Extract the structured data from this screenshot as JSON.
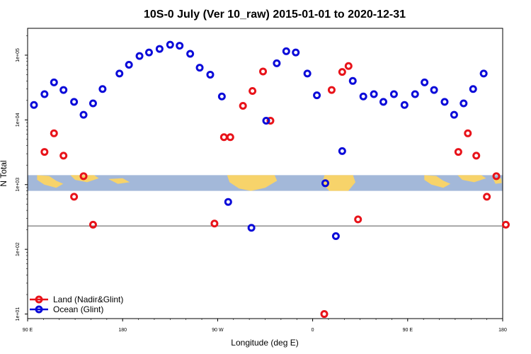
{
  "chart_data": {
    "type": "scatter",
    "title": "10S-0 July (Ver 10_raw)   2015-01-01 to 2020-12-31",
    "xlabel": "Longitude (deg E)",
    "ylabel": "N Total",
    "x_scale": "linear",
    "y_scale": "log",
    "xlim": [
      90,
      540
    ],
    "ylim": [
      8.5,
      260000
    ],
    "x_ticks": [
      {
        "value": 90,
        "label": "90 E"
      },
      {
        "value": 180,
        "label": "180"
      },
      {
        "value": 270,
        "label": "90 W"
      },
      {
        "value": 360,
        "label": "0"
      },
      {
        "value": 450,
        "label": "90 E"
      },
      {
        "value": 540,
        "label": "180"
      }
    ],
    "y_ticks": [
      {
        "value": 10,
        "label": "1e+01"
      },
      {
        "value": 100,
        "label": "1e+02"
      },
      {
        "value": 1000,
        "label": "1e+03"
      },
      {
        "value": 10000,
        "label": "1e+04"
      },
      {
        "value": 100000,
        "label": "1e+05"
      }
    ],
    "reference_line": 230,
    "map_strip": {
      "ymin": 800,
      "ymax": 1400
    },
    "legend": {
      "position": "bottom-left"
    },
    "grid": false,
    "series": [
      {
        "name": "Land (Nadir&Glint)",
        "color": "#e8131a",
        "points": [
          [
            106,
            3200
          ],
          [
            115,
            6200
          ],
          [
            124,
            2800
          ],
          [
            134,
            650
          ],
          [
            143,
            1350
          ],
          [
            152,
            240
          ],
          [
            267,
            250
          ],
          [
            276,
            5400
          ],
          [
            282,
            5400
          ],
          [
            294,
            16500
          ],
          [
            303,
            28000
          ],
          [
            313,
            56000
          ],
          [
            320,
            9700
          ],
          [
            371,
            10
          ],
          [
            378,
            29000
          ],
          [
            388,
            55000
          ],
          [
            394,
            68000
          ],
          [
            403,
            290
          ],
          [
            498,
            3200
          ],
          [
            507,
            6200
          ],
          [
            515,
            2800
          ],
          [
            525,
            650
          ],
          [
            534,
            1350
          ],
          [
            543,
            240
          ]
        ]
      },
      {
        "name": "Ocean (Glint)",
        "color": "#0b0bd9",
        "points": [
          [
            96,
            17000
          ],
          [
            106,
            25000
          ],
          [
            115,
            38000
          ],
          [
            124,
            29000
          ],
          [
            134,
            19000
          ],
          [
            143,
            12000
          ],
          [
            152,
            18000
          ],
          [
            161,
            30000
          ],
          [
            177,
            52000
          ],
          [
            186,
            71000
          ],
          [
            196,
            97000
          ],
          [
            205,
            110000
          ],
          [
            215,
            125000
          ],
          [
            225,
            145000
          ],
          [
            234,
            140000
          ],
          [
            244,
            105000
          ],
          [
            253,
            64000
          ],
          [
            263,
            50000
          ],
          [
            274,
            23000
          ],
          [
            280,
            540
          ],
          [
            302,
            215
          ],
          [
            316,
            9700
          ],
          [
            326,
            75000
          ],
          [
            335,
            115000
          ],
          [
            344,
            110000
          ],
          [
            355,
            52000
          ],
          [
            364,
            24000
          ],
          [
            372,
            1050
          ],
          [
            382,
            160
          ],
          [
            388,
            3300
          ],
          [
            398,
            40000
          ],
          [
            408,
            23000
          ],
          [
            418,
            25000
          ],
          [
            427,
            19000
          ],
          [
            437,
            25000
          ],
          [
            447,
            17000
          ],
          [
            457,
            25000
          ],
          [
            466,
            38000
          ],
          [
            475,
            29000
          ],
          [
            485,
            19000
          ],
          [
            494,
            12000
          ],
          [
            503,
            18000
          ],
          [
            512,
            30000
          ],
          [
            522,
            52000
          ]
        ]
      }
    ]
  },
  "x_tick_labels": [
    "90 E",
    "180",
    "90 W",
    "0",
    "90 E",
    "180"
  ],
  "y_tick_labels": [
    "1e+01",
    "1e+02",
    "1e+03",
    "1e+04",
    "1e+05"
  ]
}
